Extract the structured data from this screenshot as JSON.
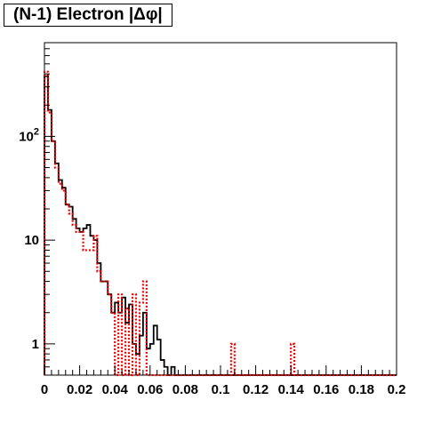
{
  "chart_data": {
    "type": "histogram-step",
    "title": "(N-1) Electron |Δφ|",
    "xlabel": "",
    "ylabel": "",
    "xlim": [
      0,
      0.2
    ],
    "ylim": [
      0.5,
      800
    ],
    "yscale": "log",
    "bin_width": 0.002,
    "x_ticks": [
      "0",
      "0.02",
      "0.04",
      "0.06",
      "0.08",
      "0.1",
      "0.12",
      "0.14",
      "0.16",
      "0.18",
      "0.2"
    ],
    "y_ticks": [
      {
        "value": 1,
        "label": "1"
      },
      {
        "value": 10,
        "label": "10"
      },
      {
        "value": 100,
        "label": "10",
        "exponent": "2"
      }
    ],
    "grid": false,
    "series": [
      {
        "style": "solid",
        "color": "#000000",
        "values": [
          380,
          180,
          90,
          55,
          38,
          32,
          22,
          21,
          16,
          13,
          12,
          13,
          14,
          11,
          10,
          6,
          4,
          4,
          3,
          2,
          2.5,
          2,
          2.8,
          1.6,
          2.4,
          1,
          0.8,
          1.2,
          2,
          0.9,
          1,
          1.5,
          1.1,
          0.7,
          0.6,
          0.5,
          0.6,
          0.5,
          0.5,
          0.5,
          0.5,
          0.5,
          0.5,
          0.5,
          0.5,
          0.5,
          0.5,
          0.5,
          0.5,
          0.5,
          0.5,
          0.5,
          0.5,
          0.5,
          0.5,
          0.5,
          0.5,
          0.5,
          0.5,
          0.5,
          0.5,
          0.5,
          0.5,
          0.5,
          0.5,
          0.5,
          0.5,
          0.5,
          0.5,
          0.5,
          0.5,
          0.5,
          0.5,
          0.5,
          0.5,
          0.5,
          0.5,
          0.5,
          0.5,
          0.5,
          0.5,
          0.5,
          0.5,
          0.5,
          0.5,
          0.5,
          0.5,
          0.5,
          0.5,
          0.5,
          0.5,
          0.5,
          0.5,
          0.5,
          0.5,
          0.5,
          0.5,
          0.5,
          0.5,
          0.5
        ]
      },
      {
        "style": "dashed",
        "color": "#ee0000",
        "values": [
          420,
          170,
          90,
          50,
          35,
          30,
          22,
          18,
          14,
          12,
          12,
          8,
          8,
          8,
          11,
          5,
          4,
          4,
          3,
          2,
          0.5,
          3,
          0.5,
          2.2,
          0.5,
          3,
          0.5,
          2.5,
          4,
          0.5,
          0.5,
          0.5,
          0.5,
          0.5,
          0.5,
          0.5,
          0.5,
          0.5,
          0.5,
          0.5,
          0.5,
          0.5,
          0.5,
          0.5,
          0.5,
          0.5,
          0.5,
          0.5,
          0.5,
          0.5,
          0.5,
          0.5,
          0.5,
          1,
          0.5,
          0.5,
          0.5,
          0.5,
          0.5,
          0.5,
          0.5,
          0.5,
          0.5,
          0.5,
          0.5,
          0.5,
          0.5,
          0.5,
          0.5,
          0.5,
          1,
          0.5,
          0.5,
          0.5,
          0.5,
          0.5,
          0.5,
          0.5,
          0.5,
          0.5,
          0.5,
          0.5,
          0.5,
          0.5,
          0.5,
          0.5,
          0.5,
          0.5,
          0.5,
          0.5,
          0.5,
          0.5,
          0.5,
          0.5,
          0.5,
          0.5,
          0.5,
          0.5,
          0.5,
          0.5
        ]
      }
    ]
  }
}
